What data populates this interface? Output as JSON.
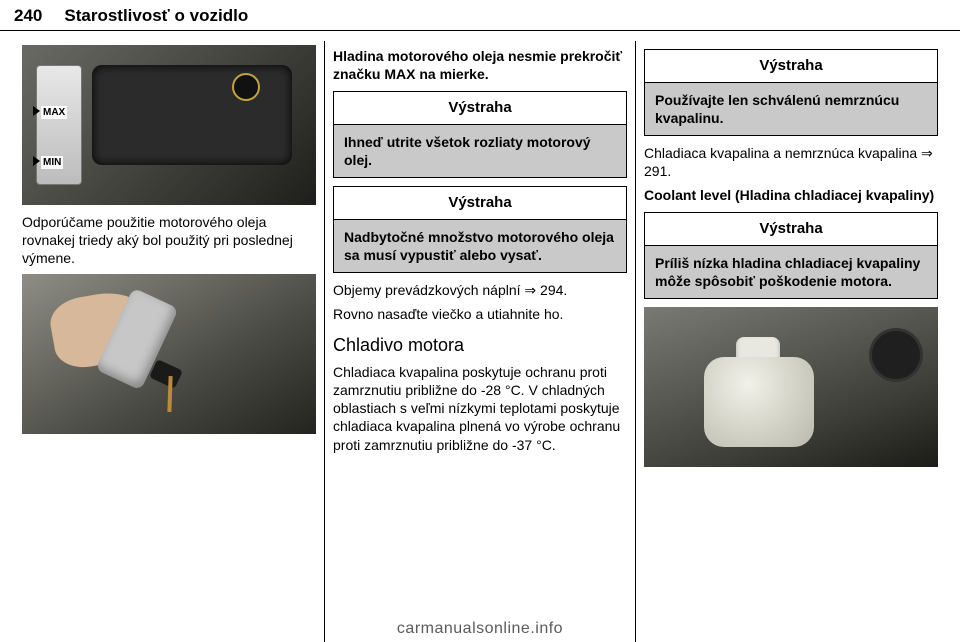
{
  "header": {
    "page_number": "240",
    "chapter": "Starostlivosť o vozidlo"
  },
  "col1": {
    "dipstick": {
      "max": "MAX",
      "min": "MIN"
    },
    "text_after_img1": "Odporúčame použitie motorového oleja rovnakej triedy aký bol použitý pri poslednej výmene."
  },
  "col2": {
    "lead": "Hladina motorového oleja nesmie prekročiť značku MAX na mierke.",
    "warn1_title": "Výstraha",
    "warn1_body": "Ihneď utrite všetok rozliaty motorový olej.",
    "warn2_title": "Výstraha",
    "warn2_body": "Nadbytočné množstvo motorového oleja sa musí vypustiť alebo vysať.",
    "capacity_ref": "Objemy prevádzkových náplní ⇒ 294.",
    "cap_instructions": "Rovno nasaďte viečko a utiahnite ho.",
    "section_title": "Chladivo motora",
    "coolant_text": "Chladiaca kvapalina poskytuje ochranu proti zamrznutiu približne do -28 °C. V chladných oblastiach s veľmi nízkymi teplotami poskytuje chladiaca kvapalina plnená vo výrobe ochranu proti zamrznutiu približne do -37 °C."
  },
  "col3": {
    "warn3_title": "Výstraha",
    "warn3_body": "Používajte len schválenú nemrznúcu kvapalinu.",
    "antifreeze_ref": "Chladiaca kvapalina a nemrznúca kvapalina ⇒ 291.",
    "coolant_level_heading": "Coolant level (Hladina chladiacej kvapaliny)",
    "warn4_title": "Výstraha",
    "warn4_body": "Príliš nízka hladina chladiacej kvapaliny môže spôsobiť poškodenie motora."
  },
  "footer": "carmanualsonline.info",
  "colors": {
    "text": "#000000",
    "warning_bg": "#c9c9c9",
    "footer": "#5b5b5b",
    "divider": "#000000"
  }
}
